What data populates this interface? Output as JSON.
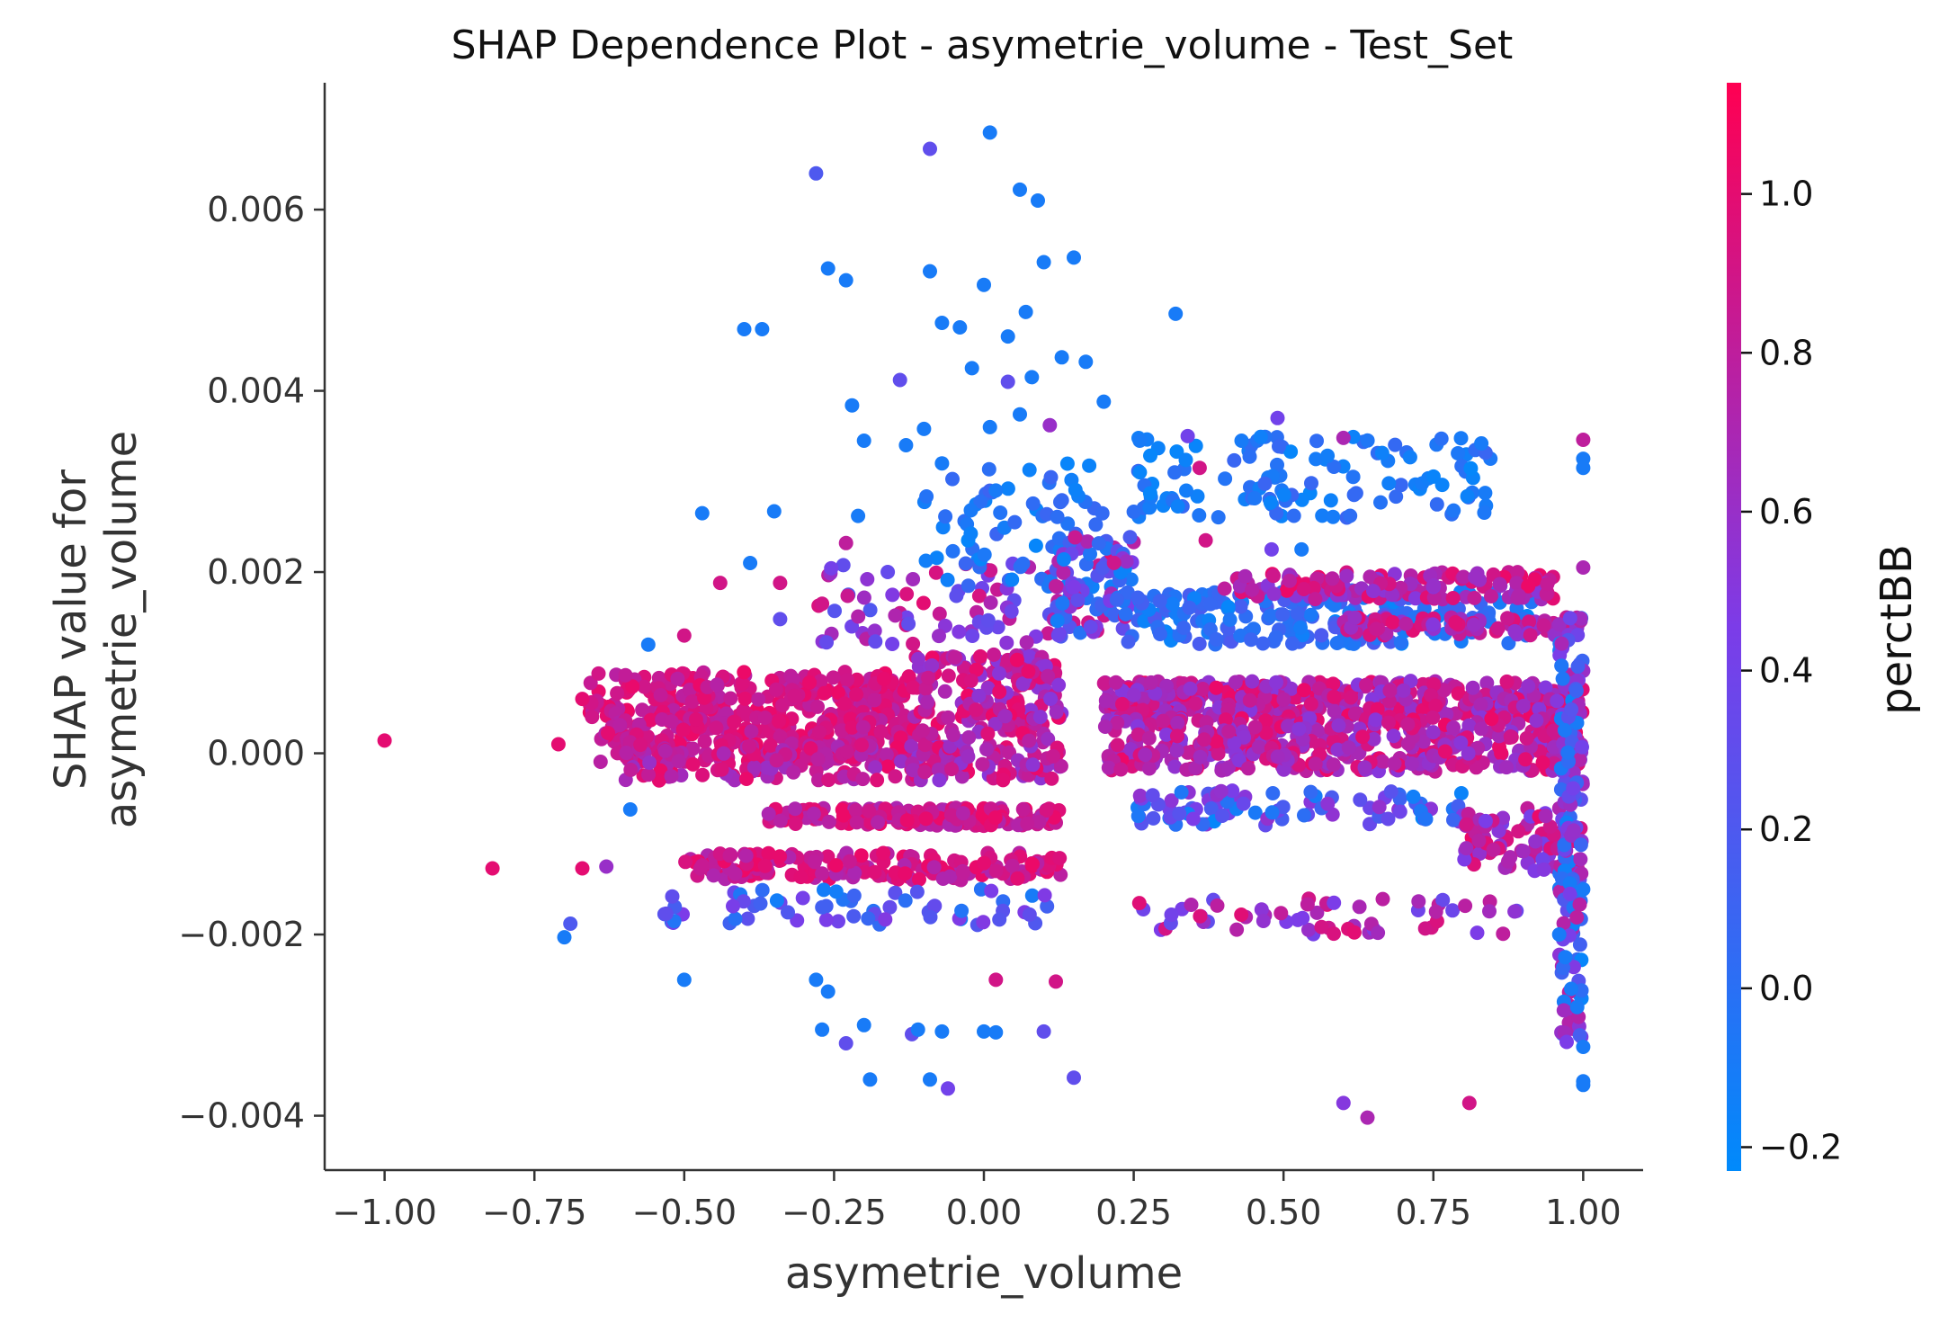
{
  "chart_data": {
    "type": "scatter",
    "title": "SHAP Dependence Plot - asymetrie_volume - Test_Set",
    "xlabel": "asymetrie_volume",
    "ylabel_lines": [
      "SHAP value for",
      "asymetrie_volume"
    ],
    "xlim": [
      -1.1,
      1.1
    ],
    "ylim": [
      -0.0046,
      0.0074
    ],
    "x_ticks": [
      -1.0,
      -0.75,
      -0.5,
      -0.25,
      0.0,
      0.25,
      0.5,
      0.75,
      1.0
    ],
    "x_tick_labels": [
      "−1.00",
      "−0.75",
      "−0.50",
      "−0.25",
      "0.00",
      "0.25",
      "0.50",
      "0.75",
      "1.00"
    ],
    "y_ticks": [
      -0.004,
      -0.002,
      0.0,
      0.002,
      0.004,
      0.006
    ],
    "y_tick_labels": [
      "−0.004",
      "−0.002",
      "0.000",
      "0.002",
      "0.004",
      "0.006"
    ],
    "grid": false,
    "colorbar": {
      "label": "perctBB",
      "min": -0.23,
      "max": 1.14,
      "ticks": [
        -0.2,
        0.0,
        0.2,
        0.4,
        0.6,
        0.8,
        1.0
      ],
      "tick_labels": [
        "−0.2",
        "0.0",
        "0.2",
        "0.4",
        "0.6",
        "0.8",
        "1.0"
      ],
      "color_low": "#008afb",
      "color_mid": "#7c3ce8",
      "color_high": "#ff0052"
    },
    "points": [
      {
        "x": 0.01,
        "y": 0.00685,
        "c": -0.1
      },
      {
        "x": -0.09,
        "y": 0.00667,
        "c": 0.3
      },
      {
        "x": -0.28,
        "y": 0.0064,
        "c": 0.2
      },
      {
        "x": 0.06,
        "y": 0.00622,
        "c": -0.1
      },
      {
        "x": 0.09,
        "y": 0.0061,
        "c": -0.1
      },
      {
        "x": 0.15,
        "y": 0.00547,
        "c": -0.1
      },
      {
        "x": 0.1,
        "y": 0.00542,
        "c": -0.1
      },
      {
        "x": -0.26,
        "y": 0.00535,
        "c": -0.1
      },
      {
        "x": -0.09,
        "y": 0.00532,
        "c": -0.1
      },
      {
        "x": -0.23,
        "y": 0.00522,
        "c": -0.1
      },
      {
        "x": 0.0,
        "y": 0.00517,
        "c": -0.1
      },
      {
        "x": 0.07,
        "y": 0.00487,
        "c": -0.1
      },
      {
        "x": 0.32,
        "y": 0.00485,
        "c": -0.1
      },
      {
        "x": -0.07,
        "y": 0.00475,
        "c": -0.1
      },
      {
        "x": -0.04,
        "y": 0.0047,
        "c": -0.1
      },
      {
        "x": -0.4,
        "y": 0.00468,
        "c": -0.1
      },
      {
        "x": -0.37,
        "y": 0.00468,
        "c": -0.1
      },
      {
        "x": 0.04,
        "y": 0.0046,
        "c": -0.1
      },
      {
        "x": 0.13,
        "y": 0.00437,
        "c": -0.1
      },
      {
        "x": 0.17,
        "y": 0.00432,
        "c": -0.1
      },
      {
        "x": -0.02,
        "y": 0.00425,
        "c": -0.1
      },
      {
        "x": 0.08,
        "y": 0.00415,
        "c": -0.1
      },
      {
        "x": -0.14,
        "y": 0.00412,
        "c": 0.3
      },
      {
        "x": 0.04,
        "y": 0.0041,
        "c": 0.3
      },
      {
        "x": 0.2,
        "y": 0.00388,
        "c": -0.1
      },
      {
        "x": -0.22,
        "y": 0.00384,
        "c": -0.1
      },
      {
        "x": 0.06,
        "y": 0.00374,
        "c": -0.1
      },
      {
        "x": 0.49,
        "y": 0.0037,
        "c": 0.4
      },
      {
        "x": 0.11,
        "y": 0.00362,
        "c": 0.6
      },
      {
        "x": 0.01,
        "y": 0.0036,
        "c": -0.1
      },
      {
        "x": -0.1,
        "y": 0.00358,
        "c": -0.1
      },
      {
        "x": 0.34,
        "y": 0.0035,
        "c": 0.4
      },
      {
        "x": 0.6,
        "y": 0.00348,
        "c": 0.7
      },
      {
        "x": 1.0,
        "y": 0.00346,
        "c": 0.8
      },
      {
        "x": -0.2,
        "y": 0.00345,
        "c": -0.1
      },
      {
        "x": -0.13,
        "y": 0.0034,
        "c": -0.1
      },
      {
        "x": 0.26,
        "y": 0.00345,
        "c": -0.1
      },
      {
        "x": 0.43,
        "y": 0.00345,
        "c": -0.1
      },
      {
        "x": 0.83,
        "y": 0.00342,
        "c": -0.1
      },
      {
        "x": 1.0,
        "y": 0.00325,
        "c": -0.1
      },
      {
        "x": 1.0,
        "y": 0.00315,
        "c": -0.1
      },
      {
        "x": -0.07,
        "y": 0.0032,
        "c": -0.1
      },
      {
        "x": 0.02,
        "y": 0.0029,
        "c": -0.1
      },
      {
        "x": 0.36,
        "y": 0.00315,
        "c": 0.9
      },
      {
        "x": -0.35,
        "y": 0.00267,
        "c": -0.1
      },
      {
        "x": -0.47,
        "y": 0.00265,
        "c": -0.1
      },
      {
        "x": -0.21,
        "y": 0.00262,
        "c": -0.1
      },
      {
        "x": 0.37,
        "y": 0.00235,
        "c": 0.9
      },
      {
        "x": -0.23,
        "y": 0.00232,
        "c": 0.8
      },
      {
        "x": 0.48,
        "y": 0.00225,
        "c": 0.4
      },
      {
        "x": -0.39,
        "y": 0.0021,
        "c": -0.1
      },
      {
        "x": 0.53,
        "y": 0.00225,
        "c": -0.1
      },
      {
        "x": 1.0,
        "y": 0.00205,
        "c": 0.7
      },
      {
        "x": -0.44,
        "y": 0.00188,
        "c": 0.9
      },
      {
        "x": -0.34,
        "y": 0.00188,
        "c": 0.9
      },
      {
        "x": -0.27,
        "y": 0.00165,
        "c": 0.9
      },
      {
        "x": -0.34,
        "y": 0.00148,
        "c": 0.3
      },
      {
        "x": -0.5,
        "y": 0.0013,
        "c": 0.9
      },
      {
        "x": -0.56,
        "y": 0.0012,
        "c": -0.1
      },
      {
        "x": -1.0,
        "y": 0.00014,
        "c": 1.0
      },
      {
        "x": -0.71,
        "y": 0.0001,
        "c": 1.0
      },
      {
        "x": -0.67,
        "y": 0.0006,
        "c": 1.0
      },
      {
        "x": -0.82,
        "y": -0.00127,
        "c": 1.0
      },
      {
        "x": -0.67,
        "y": -0.00127,
        "c": 1.0
      },
      {
        "x": -0.63,
        "y": -0.00125,
        "c": 0.6
      },
      {
        "x": -0.69,
        "y": -0.00188,
        "c": 0.2
      },
      {
        "x": -0.7,
        "y": -0.00203,
        "c": -0.1
      },
      {
        "x": -0.59,
        "y": -0.00062,
        "c": -0.1
      },
      {
        "x": -0.52,
        "y": -0.00158,
        "c": 0.3
      },
      {
        "x": -0.53,
        "y": -0.00177,
        "c": 0.3
      },
      {
        "x": -0.5,
        "y": -0.0025,
        "c": -0.1
      },
      {
        "x": -0.28,
        "y": -0.0025,
        "c": -0.1
      },
      {
        "x": -0.26,
        "y": -0.00263,
        "c": -0.1
      },
      {
        "x": -0.27,
        "y": -0.00305,
        "c": -0.1
      },
      {
        "x": -0.2,
        "y": -0.003,
        "c": -0.1
      },
      {
        "x": -0.23,
        "y": -0.0032,
        "c": 0.3
      },
      {
        "x": -0.12,
        "y": -0.0031,
        "c": 0.3
      },
      {
        "x": -0.11,
        "y": -0.00305,
        "c": -0.1
      },
      {
        "x": -0.07,
        "y": -0.00307,
        "c": -0.1
      },
      {
        "x": 0.0,
        "y": -0.00307,
        "c": -0.1
      },
      {
        "x": 0.02,
        "y": -0.00308,
        "c": -0.1
      },
      {
        "x": 0.1,
        "y": -0.00307,
        "c": 0.3
      },
      {
        "x": 0.02,
        "y": -0.0025,
        "c": 0.9
      },
      {
        "x": 0.12,
        "y": -0.00252,
        "c": 0.9
      },
      {
        "x": -0.19,
        "y": -0.0036,
        "c": -0.1
      },
      {
        "x": -0.09,
        "y": -0.0036,
        "c": -0.1
      },
      {
        "x": -0.06,
        "y": -0.0037,
        "c": 0.4
      },
      {
        "x": 0.15,
        "y": -0.00358,
        "c": 0.3
      },
      {
        "x": 0.6,
        "y": -0.00386,
        "c": 0.5
      },
      {
        "x": 0.64,
        "y": -0.00402,
        "c": 0.7
      },
      {
        "x": 0.81,
        "y": -0.00386,
        "c": 0.9
      },
      {
        "x": 1.0,
        "y": -0.00362,
        "c": -0.1
      },
      {
        "x": 1.0,
        "y": -0.00366,
        "c": -0.1
      },
      {
        "x": 1.0,
        "y": -0.00324,
        "c": -0.1
      },
      {
        "x": 0.99,
        "y": -0.0028,
        "c": -0.1
      },
      {
        "x": 0.98,
        "y": -0.0026,
        "c": -0.1
      },
      {
        "x": 0.97,
        "y": -0.00225,
        "c": -0.1
      },
      {
        "x": 0.96,
        "y": -0.002,
        "c": -0.1
      },
      {
        "x": 1.0,
        "y": -0.0015,
        "c": -0.1
      }
    ],
    "clusters": [
      {
        "x0": -0.66,
        "x1": -0.12,
        "y0": 0.0004,
        "y1": 0.0009,
        "n": 240,
        "c0": 0.75,
        "c1": 1.05
      },
      {
        "x0": -0.64,
        "x1": -0.1,
        "y0": -0.0001,
        "y1": 0.0004,
        "n": 240,
        "c0": 0.75,
        "c1": 1.05
      },
      {
        "x0": -0.6,
        "x1": -0.05,
        "y0": -0.0003,
        "y1": 0.0001,
        "n": 120,
        "c0": 0.6,
        "c1": 1.05
      },
      {
        "x0": -0.12,
        "x1": 0.13,
        "y0": -0.0003,
        "y1": 0.0011,
        "n": 260,
        "c0": 0.5,
        "c1": 1.05
      },
      {
        "x0": -0.36,
        "x1": 0.13,
        "y0": -0.0008,
        "y1": -0.0006,
        "n": 160,
        "c0": 0.7,
        "c1": 1.05
      },
      {
        "x0": -0.5,
        "x1": 0.13,
        "y0": -0.0014,
        "y1": -0.0011,
        "n": 170,
        "c0": 0.7,
        "c1": 1.05
      },
      {
        "x0": -0.55,
        "x1": 0.12,
        "y0": -0.0019,
        "y1": -0.0015,
        "n": 60,
        "c0": -0.15,
        "c1": 0.5
      },
      {
        "x0": -0.28,
        "x1": 0.13,
        "y0": 0.0012,
        "y1": 0.0021,
        "n": 70,
        "c0": 0.2,
        "c1": 1.0
      },
      {
        "x0": -0.1,
        "x1": 0.2,
        "y0": 0.0018,
        "y1": 0.0033,
        "n": 70,
        "c0": -0.2,
        "c1": 0.1
      },
      {
        "x0": 0.12,
        "x1": 0.25,
        "y0": 0.0013,
        "y1": 0.0024,
        "n": 90,
        "c0": -0.2,
        "c1": 1.0
      },
      {
        "x0": 0.2,
        "x1": 1.0,
        "y0": 0.0004,
        "y1": 0.0008,
        "n": 420,
        "c0": 0.5,
        "c1": 1.05
      },
      {
        "x0": 0.2,
        "x1": 1.0,
        "y0": -0.0002,
        "y1": 0.0004,
        "n": 420,
        "c0": 0.5,
        "c1": 1.05
      },
      {
        "x0": 0.22,
        "x1": 0.92,
        "y0": 0.0012,
        "y1": 0.0018,
        "n": 220,
        "c0": -0.2,
        "c1": 0.2
      },
      {
        "x0": 0.4,
        "x1": 0.95,
        "y0": 0.0017,
        "y1": 0.002,
        "n": 140,
        "c0": 0.5,
        "c1": 1.05
      },
      {
        "x0": 0.6,
        "x1": 1.0,
        "y0": 0.0013,
        "y1": 0.0015,
        "n": 80,
        "c0": 0.5,
        "c1": 1.0
      },
      {
        "x0": 0.25,
        "x1": 0.85,
        "y0": 0.0026,
        "y1": 0.0035,
        "n": 120,
        "c0": -0.2,
        "c1": 0.1
      },
      {
        "x0": 0.25,
        "x1": 0.8,
        "y0": -0.0008,
        "y1": -0.0004,
        "n": 90,
        "c0": -0.2,
        "c1": 0.6
      },
      {
        "x0": 0.8,
        "x1": 1.0,
        "y0": -0.0013,
        "y1": -0.0006,
        "n": 80,
        "c0": 0.4,
        "c1": 1.05
      },
      {
        "x0": 0.25,
        "x1": 0.9,
        "y0": -0.002,
        "y1": -0.0016,
        "n": 60,
        "c0": 0.3,
        "c1": 1.0
      },
      {
        "x0": 0.96,
        "x1": 1.0,
        "y0": -0.0032,
        "y1": 0.0016,
        "n": 140,
        "c0": -0.2,
        "c1": 0.8
      }
    ]
  }
}
